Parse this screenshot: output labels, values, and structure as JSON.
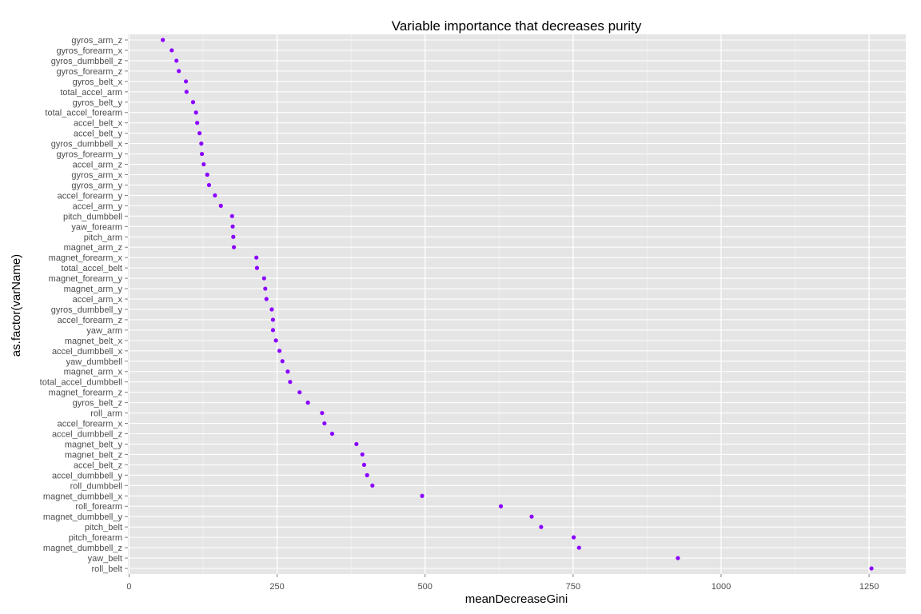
{
  "chart_data": {
    "type": "scatter",
    "title": "Variable importance that decreases purity",
    "xlabel": "meanDecreaseGini",
    "ylabel": "as.factor(varName)",
    "xlim": [
      -2,
      1312
    ],
    "xticks": [
      0,
      250,
      500,
      750,
      1000,
      1250
    ],
    "xtick_labels": [
      "0",
      "250",
      "500",
      "750",
      "1000",
      "1250"
    ],
    "grid": true,
    "legend": "none",
    "colors": {
      "point": "#8B00FF",
      "panel": "#E5E5E5",
      "grid_major": "#FFFFFF",
      "grid_minor": "#F2F2F2",
      "tick_text": "#4D4D4D"
    },
    "categories": [
      "gyros_arm_z",
      "gyros_forearm_x",
      "gyros_dumbbell_z",
      "gyros_forearm_z",
      "gyros_belt_x",
      "total_accel_arm",
      "gyros_belt_y",
      "total_accel_forearm",
      "accel_belt_x",
      "accel_belt_y",
      "gyros_dumbbell_x",
      "gyros_forearm_y",
      "accel_arm_z",
      "gyros_arm_x",
      "gyros_arm_y",
      "accel_forearm_y",
      "accel_arm_y",
      "pitch_dumbbell",
      "yaw_forearm",
      "pitch_arm",
      "magnet_arm_z",
      "magnet_forearm_x",
      "total_accel_belt",
      "magnet_forearm_y",
      "magnet_arm_y",
      "accel_arm_x",
      "gyros_dumbbell_y",
      "accel_forearm_z",
      "yaw_arm",
      "magnet_belt_x",
      "accel_dumbbell_x",
      "yaw_dumbbell",
      "magnet_arm_x",
      "total_accel_dumbbell",
      "magnet_forearm_z",
      "gyros_belt_z",
      "roll_arm",
      "accel_forearm_x",
      "accel_dumbbell_z",
      "magnet_belt_y",
      "magnet_belt_z",
      "accel_belt_z",
      "accel_dumbbell_y",
      "roll_dumbbell",
      "magnet_dumbbell_x",
      "roll_forearm",
      "magnet_dumbbell_y",
      "pitch_belt",
      "pitch_forearm",
      "magnet_dumbbell_z",
      "yaw_belt",
      "roll_belt"
    ],
    "values": [
      57,
      72,
      80,
      84,
      96,
      97,
      108,
      113,
      115,
      119,
      122,
      123,
      126,
      132,
      135,
      145,
      155,
      174,
      175,
      176,
      177,
      215,
      216,
      228,
      230,
      232,
      241,
      243,
      243,
      248,
      254,
      259,
      268,
      272,
      288,
      302,
      326,
      330,
      343,
      384,
      394,
      397,
      402,
      411,
      495,
      628,
      680,
      696,
      751,
      760,
      927,
      1254
    ]
  }
}
